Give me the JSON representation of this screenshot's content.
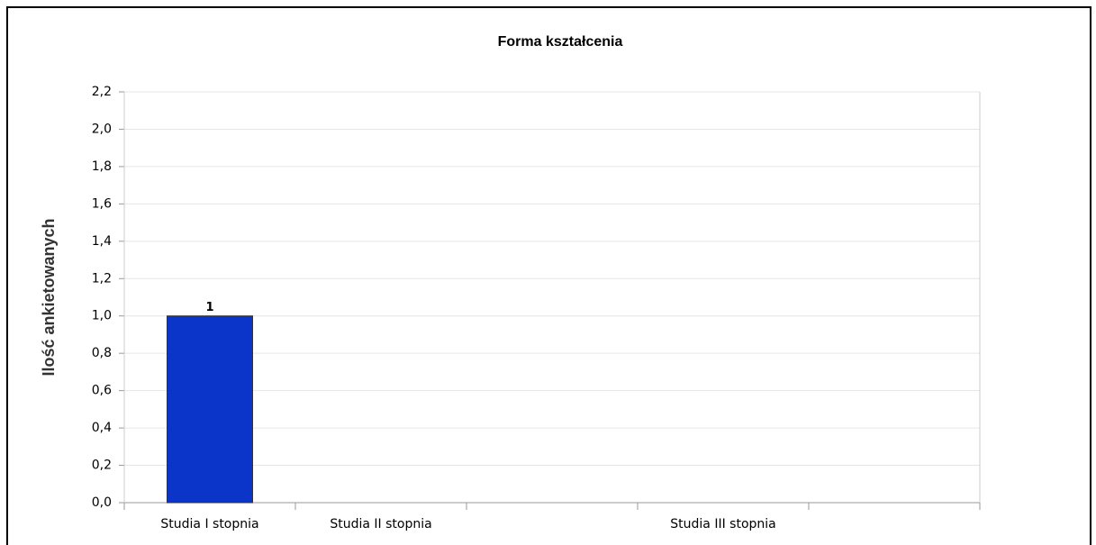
{
  "chart_data": {
    "type": "bar",
    "title": "Forma kształcenia",
    "y_label": "Ilość ankietowanych",
    "categories": [
      "Studia I stopnia",
      "Studia II stopnia",
      null,
      "Studia III stopnia",
      null
    ],
    "values": [
      1,
      0,
      null,
      0,
      null
    ],
    "color": "#0a35c8",
    "ylim": [
      0,
      2.2
    ],
    "yticks": [
      {
        "value": 0,
        "label": "0,0"
      },
      {
        "value": 0.2,
        "label": "0,2"
      },
      {
        "value": 0.4,
        "label": "0,4"
      },
      {
        "value": 0.6,
        "label": "0,6"
      },
      {
        "value": 0.8,
        "label": "0,8"
      },
      {
        "value": 1.0,
        "label": "1,0"
      },
      {
        "value": 1.2,
        "label": "1,2"
      },
      {
        "value": 1.4,
        "label": "1,4"
      },
      {
        "value": 1.6,
        "label": "1,6"
      },
      {
        "value": 1.8,
        "label": "1,8"
      },
      {
        "value": 2.0,
        "label": "2,0"
      },
      {
        "value": 2.2,
        "label": "2,2"
      }
    ],
    "grid": true
  }
}
